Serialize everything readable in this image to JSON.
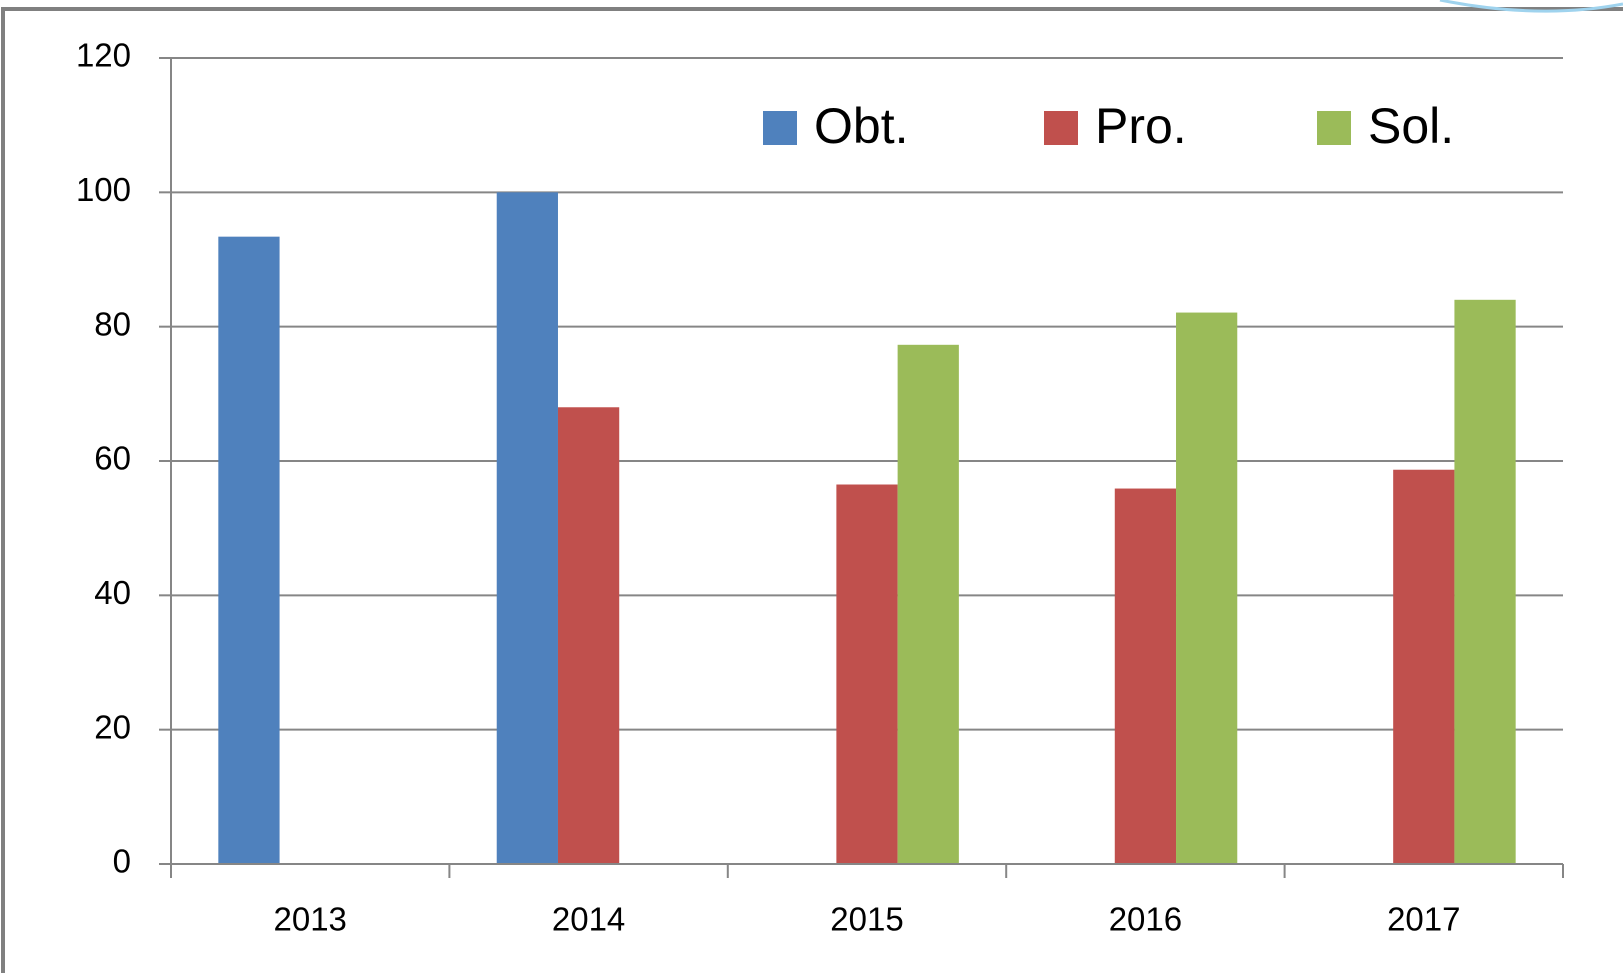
{
  "chart_data": {
    "type": "bar",
    "categories": [
      "2013",
      "2014",
      "2015",
      "2016",
      "2017"
    ],
    "series": [
      {
        "name": "Obt.",
        "color": "#4f81bd",
        "values": [
          93.4,
          100,
          null,
          null,
          null
        ]
      },
      {
        "name": "Pro.",
        "color": "#c0504d",
        "values": [
          null,
          68,
          56.5,
          55.9,
          58.7
        ]
      },
      {
        "name": "Sol.",
        "color": "#9bbb59",
        "values": [
          null,
          null,
          77.3,
          82.1,
          84
        ]
      }
    ],
    "ylim": [
      0,
      120
    ],
    "yticks": [
      0,
      20,
      40,
      60,
      80,
      100,
      120
    ],
    "grid": true,
    "legend": "top"
  }
}
